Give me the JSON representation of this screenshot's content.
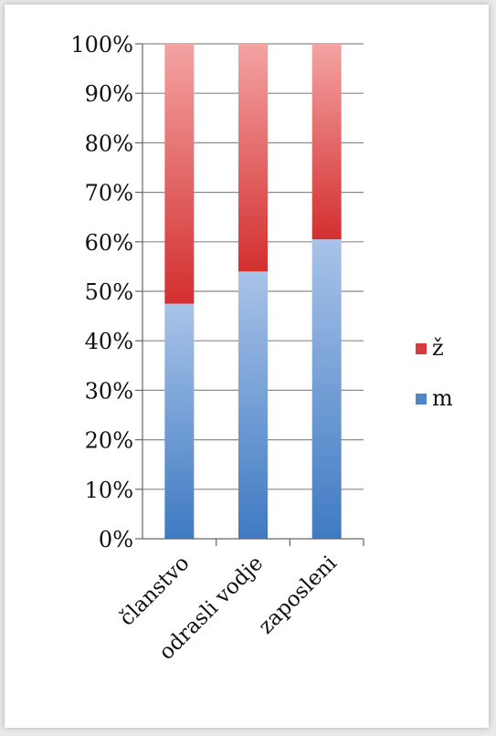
{
  "chart_data": {
    "type": "bar",
    "stacked": true,
    "percent": true,
    "categories": [
      "članstvo",
      "odrasli vodje",
      "zaposleni"
    ],
    "series": [
      {
        "name": "m",
        "values": [
          47.5,
          54,
          60.5
        ],
        "color": "#4f86c6",
        "color_light": "#a9c3e8"
      },
      {
        "name": "ž",
        "values": [
          52.5,
          46,
          39.5
        ],
        "color": "#d83b3b",
        "color_light": "#f0a0a0"
      }
    ],
    "ylim": [
      0,
      100
    ],
    "yticks": [
      "0%",
      "10%",
      "20%",
      "30%",
      "40%",
      "50%",
      "60%",
      "70%",
      "80%",
      "90%",
      "100%"
    ],
    "legend_items": [
      "ž",
      "m"
    ],
    "legend_position": "right",
    "grid": true
  }
}
